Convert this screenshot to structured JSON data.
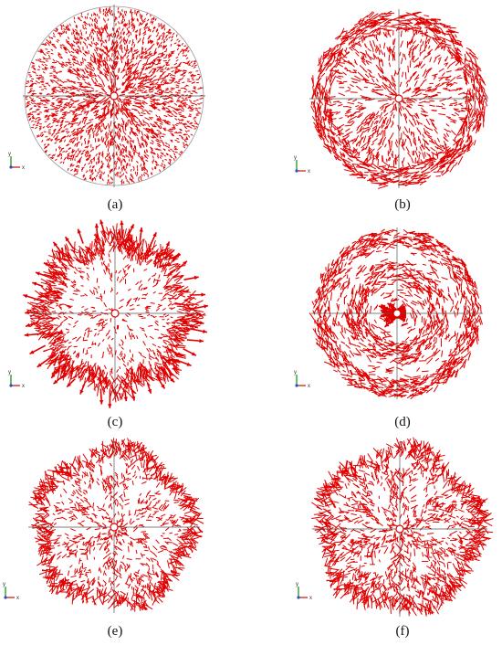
{
  "figure": {
    "panels": [
      {
        "id": "a",
        "caption": "(a)",
        "pattern": "radial-fine",
        "axis_labels": {
          "y": "y",
          "x": "x"
        }
      },
      {
        "id": "b",
        "caption": "(b)",
        "pattern": "ring-tangential",
        "axis_labels": {
          "y": "y",
          "x": "x"
        }
      },
      {
        "id": "c",
        "caption": "(c)",
        "pattern": "lobed-outer-arrows",
        "axis_labels": {
          "y": "y",
          "x": "x"
        }
      },
      {
        "id": "d",
        "caption": "(d)",
        "pattern": "ring-with-center-burst",
        "axis_labels": {
          "y": "y",
          "x": "x"
        }
      },
      {
        "id": "e",
        "caption": "(e)",
        "pattern": "mode-lobes-sparse",
        "axis_labels": {
          "y": "y",
          "x": "x"
        }
      },
      {
        "id": "f",
        "caption": "(f)",
        "pattern": "mode-lobes-dense",
        "axis_labels": {
          "y": "y",
          "x": "x"
        }
      }
    ],
    "colors": {
      "vector": "#e00000",
      "vector_light": "#f07070",
      "axis_line": "#555555",
      "triad_y": "#2e9e2e",
      "triad_x": "#d03030",
      "triad_z": "#2a4fc0"
    }
  }
}
